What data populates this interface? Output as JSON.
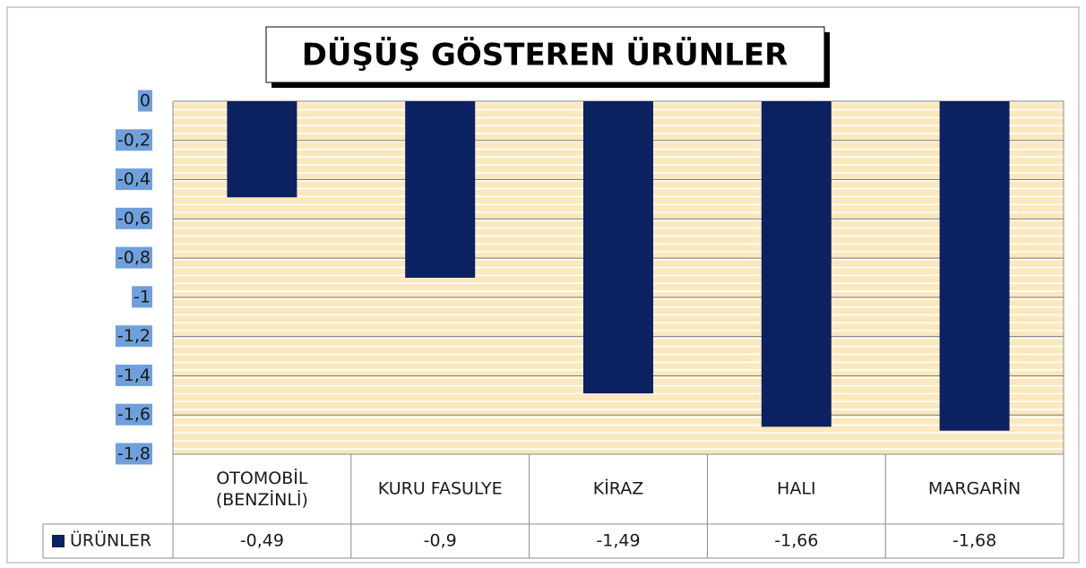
{
  "chart_data": {
    "type": "bar",
    "title": "DÜŞÜŞ GÖSTEREN ÜRÜNLER",
    "categories": [
      "OTOMOBİL (BENZİNLİ)",
      "KURU FASULYE",
      "KİRAZ",
      "HALI",
      "MARGARİN"
    ],
    "series": [
      {
        "name": "ÜRÜNLER",
        "color": "#0b2160",
        "values": [
          -0.49,
          -0.9,
          -1.49,
          -1.66,
          -1.68
        ],
        "value_labels": [
          "-0,49",
          "-0,9",
          "-1,49",
          "-1,66",
          "-1,68"
        ]
      }
    ],
    "ylim": [
      -1.8,
      0
    ],
    "yticks": [
      0,
      {
        "value": -0.2,
        "label": "-0,2"
      },
      {
        "value": -0.4,
        "label": "-0,4"
      },
      {
        "value": -0.6,
        "label": "-0,6"
      },
      {
        "value": -0.8,
        "label": "-0,8"
      },
      -1,
      {
        "value": -1.2,
        "label": "-1,2"
      },
      {
        "value": -1.4,
        "label": "-1,4"
      },
      {
        "value": -1.6,
        "label": "-1,6"
      },
      {
        "value": -1.8,
        "label": "-1,8"
      }
    ],
    "grid": true
  }
}
